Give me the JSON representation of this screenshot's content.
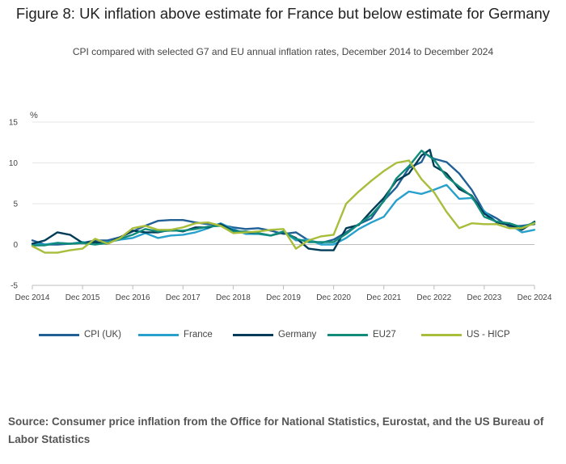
{
  "title": "Figure 8: UK inflation above estimate for France but below estimate for Germany",
  "subtitle": "CPI compared with selected G7 and EU annual inflation rates, December 2014 to December 2024",
  "source": "Source: Consumer price inflation from the Office for National Statistics, Eurostat, and the US Bureau of Labor Statistics",
  "chart_data": {
    "type": "line",
    "title": "Figure 8: UK inflation above estimate for France but below estimate for Germany",
    "subtitle": "CPI compared with selected G7 and EU annual inflation rates, December 2014 to December 2024",
    "ylabel": "%",
    "xlabel": "",
    "ylim": [
      -5,
      15
    ],
    "yticks": [
      -5,
      0,
      5,
      10,
      15
    ],
    "xlim": [
      0,
      120
    ],
    "x_unit": "months since Dec 2014",
    "xticks": [
      {
        "x": 0,
        "label": "Dec 2014"
      },
      {
        "x": 12,
        "label": "Dec 2015"
      },
      {
        "x": 24,
        "label": "Dec 2016"
      },
      {
        "x": 36,
        "label": "Dec 2017"
      },
      {
        "x": 48,
        "label": "Dec 2018"
      },
      {
        "x": 60,
        "label": "Dec 2019"
      },
      {
        "x": 72,
        "label": "Dec 2020"
      },
      {
        "x": 84,
        "label": "Dec 2021"
      },
      {
        "x": 96,
        "label": "Dec 2022"
      },
      {
        "x": 108,
        "label": "Dec 2023"
      },
      {
        "x": 120,
        "label": "Dec 2024"
      }
    ],
    "grid": true,
    "legend_position": "bottom",
    "series": [
      {
        "name": "CPI (UK)",
        "color": "#206095",
        "points": [
          [
            0,
            0.5
          ],
          [
            3,
            0
          ],
          [
            6,
            0
          ],
          [
            9,
            0.1
          ],
          [
            12,
            0.2
          ],
          [
            15,
            0.5
          ],
          [
            18,
            0.5
          ],
          [
            21,
            0.9
          ],
          [
            24,
            1.6
          ],
          [
            27,
            2.3
          ],
          [
            30,
            2.9
          ],
          [
            33,
            3.0
          ],
          [
            36,
            3.0
          ],
          [
            39,
            2.7
          ],
          [
            42,
            2.5
          ],
          [
            45,
            2.4
          ],
          [
            48,
            2.1
          ],
          [
            51,
            1.9
          ],
          [
            54,
            2.0
          ],
          [
            57,
            1.7
          ],
          [
            60,
            1.3
          ],
          [
            63,
            1.5
          ],
          [
            66,
            0.5
          ],
          [
            69,
            0.2
          ],
          [
            72,
            0.6
          ],
          [
            75,
            1.5
          ],
          [
            78,
            2.5
          ],
          [
            81,
            3.2
          ],
          [
            84,
            5.4
          ],
          [
            87,
            7.0
          ],
          [
            90,
            9.4
          ],
          [
            93,
            10.1
          ],
          [
            94,
            11.1
          ],
          [
            96,
            10.5
          ],
          [
            99,
            10.1
          ],
          [
            102,
            8.7
          ],
          [
            105,
            6.7
          ],
          [
            108,
            4.0
          ],
          [
            111,
            3.2
          ],
          [
            114,
            2.2
          ],
          [
            117,
            2.3
          ],
          [
            120,
            2.5
          ]
        ]
      },
      {
        "name": "France",
        "color": "#27a0cc",
        "points": [
          [
            0,
            0.1
          ],
          [
            3,
            0
          ],
          [
            6,
            0.2
          ],
          [
            9,
            0.1
          ],
          [
            12,
            0.3
          ],
          [
            15,
            0.1
          ],
          [
            18,
            0.3
          ],
          [
            21,
            0.6
          ],
          [
            24,
            0.8
          ],
          [
            27,
            1.4
          ],
          [
            30,
            0.8
          ],
          [
            33,
            1.1
          ],
          [
            36,
            1.2
          ],
          [
            39,
            1.5
          ],
          [
            42,
            2.0
          ],
          [
            45,
            2.6
          ],
          [
            48,
            1.9
          ],
          [
            51,
            1.3
          ],
          [
            54,
            1.3
          ],
          [
            57,
            1.1
          ],
          [
            60,
            1.6
          ],
          [
            63,
            0.5
          ],
          [
            66,
            0.6
          ],
          [
            69,
            0
          ],
          [
            72,
            0
          ],
          [
            75,
            0.8
          ],
          [
            78,
            1.9
          ],
          [
            81,
            2.7
          ],
          [
            84,
            3.4
          ],
          [
            87,
            5.4
          ],
          [
            90,
            6.5
          ],
          [
            93,
            6.2
          ],
          [
            96,
            6.7
          ],
          [
            99,
            7.3
          ],
          [
            102,
            5.6
          ],
          [
            105,
            5.7
          ],
          [
            108,
            4.1
          ],
          [
            111,
            2.7
          ],
          [
            114,
            2.5
          ],
          [
            117,
            1.5
          ],
          [
            120,
            1.8
          ]
        ]
      },
      {
        "name": "Germany",
        "color": "#003c57",
        "points": [
          [
            0,
            0.1
          ],
          [
            3,
            0.5
          ],
          [
            6,
            1.5
          ],
          [
            9,
            1.2
          ],
          [
            12,
            0.2
          ],
          [
            15,
            0.3
          ],
          [
            18,
            0.1
          ],
          [
            21,
            0.9
          ],
          [
            24,
            1.7
          ],
          [
            27,
            1.5
          ],
          [
            30,
            1.5
          ],
          [
            33,
            1.8
          ],
          [
            36,
            1.6
          ],
          [
            39,
            2.1
          ],
          [
            42,
            2.1
          ],
          [
            45,
            2.5
          ],
          [
            48,
            1.7
          ],
          [
            51,
            1.5
          ],
          [
            54,
            1.4
          ],
          [
            57,
            1.1
          ],
          [
            60,
            1.5
          ],
          [
            63,
            0.8
          ],
          [
            66,
            -0.5
          ],
          [
            69,
            -0.7
          ],
          [
            72,
            -0.7
          ],
          [
            75,
            2.0
          ],
          [
            78,
            2.4
          ],
          [
            81,
            4.1
          ],
          [
            84,
            5.7
          ],
          [
            87,
            7.8
          ],
          [
            90,
            8.7
          ],
          [
            93,
            10.9
          ],
          [
            95,
            11.6
          ],
          [
            96,
            9.6
          ],
          [
            99,
            8.7
          ],
          [
            102,
            6.8
          ],
          [
            105,
            6.0
          ],
          [
            108,
            3.8
          ],
          [
            111,
            2.7
          ],
          [
            114,
            2.4
          ],
          [
            117,
            1.8
          ],
          [
            120,
            2.8
          ]
        ]
      },
      {
        "name": "EU27",
        "color": "#118c7b",
        "points": [
          [
            0,
            -0.1
          ],
          [
            3,
            -0.1
          ],
          [
            6,
            0.2
          ],
          [
            9,
            0.1
          ],
          [
            12,
            0.2
          ],
          [
            15,
            0
          ],
          [
            18,
            0.2
          ],
          [
            21,
            0.7
          ],
          [
            24,
            1.2
          ],
          [
            27,
            1.9
          ],
          [
            30,
            1.6
          ],
          [
            33,
            1.7
          ],
          [
            36,
            1.7
          ],
          [
            39,
            1.9
          ],
          [
            42,
            2.2
          ],
          [
            45,
            2.3
          ],
          [
            48,
            1.6
          ],
          [
            51,
            1.6
          ],
          [
            54,
            1.4
          ],
          [
            57,
            1.1
          ],
          [
            60,
            1.6
          ],
          [
            63,
            0.7
          ],
          [
            66,
            0.3
          ],
          [
            69,
            0.3
          ],
          [
            72,
            0.3
          ],
          [
            75,
            1.3
          ],
          [
            78,
            2.5
          ],
          [
            81,
            3.6
          ],
          [
            84,
            5.3
          ],
          [
            87,
            8.1
          ],
          [
            90,
            9.6
          ],
          [
            93,
            11.5
          ],
          [
            96,
            10.4
          ],
          [
            99,
            8.3
          ],
          [
            102,
            7.1
          ],
          [
            105,
            5.9
          ],
          [
            108,
            3.4
          ],
          [
            111,
            2.8
          ],
          [
            114,
            2.6
          ],
          [
            117,
            2.1
          ],
          [
            120,
            2.7
          ]
        ]
      },
      {
        "name": "US - HICP",
        "color": "#a8bd3a",
        "points": [
          [
            0,
            -0.2
          ],
          [
            3,
            -1.0
          ],
          [
            6,
            -1.0
          ],
          [
            9,
            -0.7
          ],
          [
            12,
            -0.5
          ],
          [
            15,
            0.7
          ],
          [
            18,
            0.1
          ],
          [
            21,
            0.8
          ],
          [
            24,
            2.0
          ],
          [
            27,
            2.3
          ],
          [
            30,
            1.8
          ],
          [
            33,
            1.8
          ],
          [
            36,
            2.1
          ],
          [
            39,
            2.6
          ],
          [
            42,
            2.7
          ],
          [
            45,
            2.3
          ],
          [
            48,
            1.4
          ],
          [
            51,
            1.5
          ],
          [
            54,
            1.6
          ],
          [
            57,
            1.8
          ],
          [
            60,
            1.9
          ],
          [
            63,
            -0.5
          ],
          [
            66,
            0.5
          ],
          [
            69,
            1.0
          ],
          [
            72,
            1.2
          ],
          [
            75,
            5.0
          ],
          [
            78,
            6.5
          ],
          [
            81,
            7.8
          ],
          [
            84,
            9.0
          ],
          [
            87,
            10.0
          ],
          [
            90,
            10.3
          ],
          [
            93,
            8.0
          ],
          [
            96,
            6.4
          ],
          [
            99,
            4.0
          ],
          [
            102,
            2.0
          ],
          [
            105,
            2.6
          ],
          [
            108,
            2.5
          ],
          [
            111,
            2.5
          ],
          [
            114,
            2.0
          ],
          [
            117,
            2.0
          ],
          [
            120,
            2.6
          ]
        ]
      }
    ]
  }
}
